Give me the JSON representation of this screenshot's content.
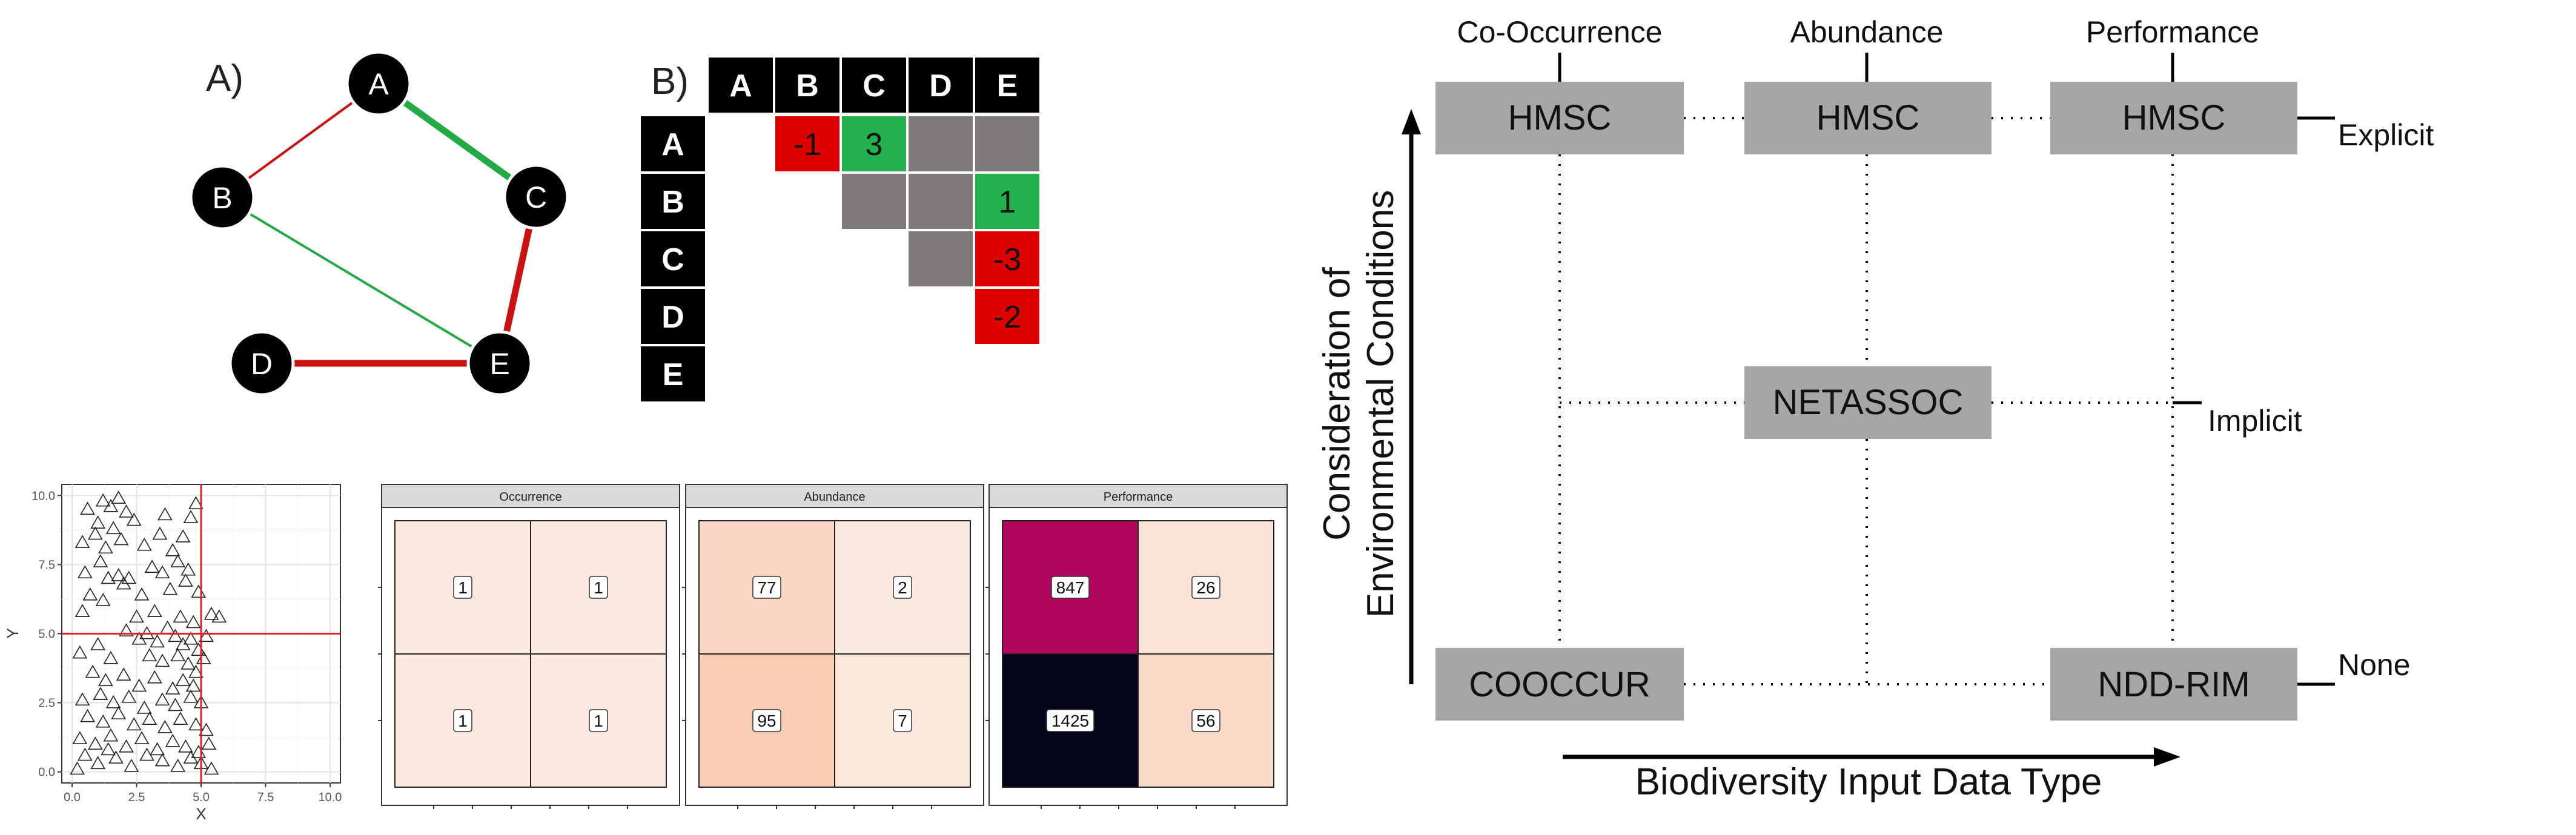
{
  "panel_a": {
    "label": "A)",
    "nodes": [
      {
        "id": "A"
      },
      {
        "id": "B"
      },
      {
        "id": "C"
      },
      {
        "id": "D"
      },
      {
        "id": "E"
      }
    ],
    "edges": [
      {
        "from": "A",
        "to": "B",
        "sign": "negative",
        "weight": "weak"
      },
      {
        "from": "A",
        "to": "C",
        "sign": "positive",
        "weight": "strong"
      },
      {
        "from": "B",
        "to": "E",
        "sign": "positive",
        "weight": "weak"
      },
      {
        "from": "C",
        "to": "E",
        "sign": "negative",
        "weight": "strong"
      },
      {
        "from": "D",
        "to": "E",
        "sign": "negative",
        "weight": "strong"
      }
    ],
    "colors": {
      "positive": "#22aa44",
      "negative": "#cc1111",
      "node": "#000000"
    }
  },
  "panel_b": {
    "label": "B)",
    "columns": [
      "A",
      "B",
      "C",
      "D",
      "E"
    ],
    "rows": [
      "A",
      "B",
      "C",
      "D",
      "E"
    ],
    "cells": [
      {
        "row": "A",
        "col": "B",
        "value": "-1",
        "kind": "negative"
      },
      {
        "row": "A",
        "col": "C",
        "value": "3",
        "kind": "positive"
      },
      {
        "row": "A",
        "col": "D",
        "value": "",
        "kind": "none"
      },
      {
        "row": "A",
        "col": "E",
        "value": "",
        "kind": "none"
      },
      {
        "row": "B",
        "col": "C",
        "value": "",
        "kind": "none"
      },
      {
        "row": "B",
        "col": "D",
        "value": "",
        "kind": "none"
      },
      {
        "row": "B",
        "col": "E",
        "value": "1",
        "kind": "positive"
      },
      {
        "row": "C",
        "col": "D",
        "value": "",
        "kind": "none"
      },
      {
        "row": "C",
        "col": "E",
        "value": "-3",
        "kind": "negative"
      },
      {
        "row": "D",
        "col": "E",
        "value": "-2",
        "kind": "negative"
      }
    ],
    "colors": {
      "header": "#000000",
      "positive": "#22b14c",
      "negative": "#dd0000",
      "none": "#7f7a7a"
    }
  },
  "chart_data": [
    {
      "type": "scatter",
      "xlabel": "X",
      "ylabel": "Y",
      "xlim": [
        0,
        10
      ],
      "ylim": [
        0,
        10
      ],
      "xticks": [
        "0.0",
        "2.5",
        "5.0",
        "7.5",
        "10.0"
      ],
      "yticks": [
        "0.0",
        "2.5",
        "5.0",
        "7.5",
        "10.0"
      ],
      "reference_lines": {
        "x": 5.0,
        "y": 5.0,
        "color": "#dd2222"
      },
      "marker": "triangle-open",
      "points": [
        [
          0.6,
          9.5
        ],
        [
          1.2,
          9.8
        ],
        [
          1.5,
          9.6
        ],
        [
          1.8,
          9.9
        ],
        [
          2.1,
          9.4
        ],
        [
          1.0,
          9.0
        ],
        [
          1.6,
          8.8
        ],
        [
          2.4,
          9.1
        ],
        [
          0.4,
          8.3
        ],
        [
          0.9,
          8.6
        ],
        [
          1.3,
          8.1
        ],
        [
          1.9,
          8.4
        ],
        [
          2.8,
          8.2
        ],
        [
          3.4,
          8.6
        ],
        [
          3.9,
          8.0
        ],
        [
          4.3,
          8.5
        ],
        [
          4.6,
          9.2
        ],
        [
          4.8,
          9.7
        ],
        [
          3.6,
          9.3
        ],
        [
          1.1,
          7.6
        ],
        [
          0.5,
          7.2
        ],
        [
          1.4,
          7.0
        ],
        [
          1.8,
          7.1
        ],
        [
          2.0,
          6.8
        ],
        [
          2.2,
          7.0
        ],
        [
          3.1,
          7.4
        ],
        [
          3.5,
          7.2
        ],
        [
          4.1,
          7.6
        ],
        [
          4.5,
          7.3
        ],
        [
          0.7,
          6.4
        ],
        [
          1.2,
          6.2
        ],
        [
          2.7,
          6.4
        ],
        [
          3.8,
          6.6
        ],
        [
          4.4,
          6.9
        ],
        [
          4.9,
          6.5
        ],
        [
          0.4,
          5.8
        ],
        [
          2.5,
          5.6
        ],
        [
          3.2,
          5.8
        ],
        [
          4.2,
          5.6
        ],
        [
          4.7,
          5.4
        ],
        [
          5.4,
          5.7
        ],
        [
          5.7,
          5.6
        ],
        [
          2.1,
          5.1
        ],
        [
          2.6,
          4.8
        ],
        [
          2.9,
          5.0
        ],
        [
          3.3,
          4.7
        ],
        [
          3.7,
          5.2
        ],
        [
          4.0,
          4.9
        ],
        [
          4.3,
          4.6
        ],
        [
          4.6,
          4.8
        ],
        [
          4.9,
          4.4
        ],
        [
          5.2,
          4.9
        ],
        [
          0.3,
          4.3
        ],
        [
          1.0,
          4.6
        ],
        [
          1.5,
          4.1
        ],
        [
          3.0,
          4.2
        ],
        [
          3.5,
          4.0
        ],
        [
          4.1,
          4.2
        ],
        [
          4.5,
          3.9
        ],
        [
          4.8,
          3.6
        ],
        [
          5.1,
          4.1
        ],
        [
          0.8,
          3.6
        ],
        [
          1.3,
          3.3
        ],
        [
          2.0,
          3.5
        ],
        [
          2.6,
          3.1
        ],
        [
          3.2,
          3.4
        ],
        [
          3.9,
          3.0
        ],
        [
          4.3,
          3.3
        ],
        [
          4.7,
          3.1
        ],
        [
          0.4,
          2.6
        ],
        [
          1.1,
          2.8
        ],
        [
          1.6,
          2.5
        ],
        [
          2.2,
          2.7
        ],
        [
          2.8,
          2.3
        ],
        [
          3.5,
          2.6
        ],
        [
          4.0,
          2.4
        ],
        [
          4.6,
          2.7
        ],
        [
          5.0,
          2.5
        ],
        [
          0.6,
          2.0
        ],
        [
          1.2,
          1.8
        ],
        [
          1.8,
          2.1
        ],
        [
          2.4,
          1.7
        ],
        [
          3.0,
          1.9
        ],
        [
          3.6,
          1.6
        ],
        [
          4.2,
          1.9
        ],
        [
          4.8,
          1.7
        ],
        [
          5.2,
          1.5
        ],
        [
          0.3,
          1.2
        ],
        [
          0.9,
          1.0
        ],
        [
          1.5,
          1.3
        ],
        [
          2.1,
          0.9
        ],
        [
          2.7,
          1.2
        ],
        [
          3.3,
          0.8
        ],
        [
          3.9,
          1.1
        ],
        [
          4.4,
          0.9
        ],
        [
          4.9,
          0.7
        ],
        [
          5.3,
          1.0
        ],
        [
          0.5,
          0.6
        ],
        [
          1.0,
          0.3
        ],
        [
          1.7,
          0.5
        ],
        [
          2.3,
          0.2
        ],
        [
          2.9,
          0.6
        ],
        [
          3.5,
          0.4
        ],
        [
          4.1,
          0.2
        ],
        [
          4.6,
          0.5
        ],
        [
          5.0,
          0.3
        ],
        [
          5.4,
          0.1
        ],
        [
          1.4,
          0.8
        ],
        [
          0.2,
          0.1
        ]
      ]
    },
    {
      "type": "heatmap",
      "facets": [
        {
          "title": "Occurrence",
          "cells": [
            [
              1,
              1
            ],
            [
              1,
              1
            ]
          ],
          "fills": [
            [
              "#fce9df",
              "#fce9df"
            ],
            [
              "#fce9df",
              "#fce9df"
            ]
          ]
        },
        {
          "title": "Abundance",
          "cells": [
            [
              77,
              2
            ],
            [
              95,
              7
            ]
          ],
          "fills": [
            [
              "#f9d7c3",
              "#fce9df"
            ],
            [
              "#f8cdb3",
              "#fce8dd"
            ]
          ]
        },
        {
          "title": "Performance",
          "cells": [
            [
              847,
              26
            ],
            [
              1425,
              56
            ]
          ],
          "fills": [
            [
              "#b0065e",
              "#fbe4d7"
            ],
            [
              "#04061a",
              "#f9dac8"
            ]
          ]
        }
      ]
    }
  ],
  "panel_c": {
    "column_headers": [
      "Co-Occurrence",
      "Abundance",
      "Performance"
    ],
    "boxes": {
      "hmsc_1": "HMSC",
      "hmsc_2": "HMSC",
      "hmsc_3": "HMSC",
      "netassoc": "NETASSOC",
      "cooccur": "COOCCUR",
      "nddrim": "NDD-RIM"
    },
    "row_labels": {
      "explicit": "Explicit",
      "implicit": "Implicit",
      "none": "None"
    },
    "y_axis_line1": "Consideration of",
    "y_axis_line2": "Environmental Conditions",
    "x_axis": "Biodiversity Input Data Type",
    "colors": {
      "box": "#a6a6a6"
    }
  }
}
